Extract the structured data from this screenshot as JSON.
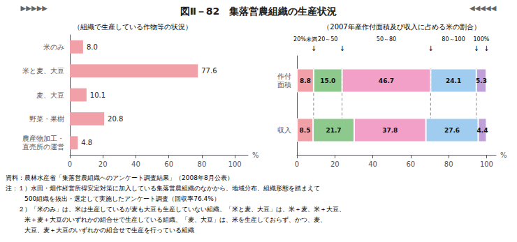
{
  "chart_data": [
    {
      "type": "bar",
      "orientation": "horizontal",
      "title": "図Ⅱ－82　集落営農組織の生産状況",
      "annotations": [
        "▶▶▶▶▶",
        "◀◀◀◀◀"
      ],
      "subtitle": "（組織で生産している作物等の状況）",
      "categories": [
        "米のみ",
        "米と麦、大豆",
        "麦、大豆",
        "野菜・果樹",
        "農産物加工・\n直売所の運営"
      ],
      "values": [
        8.0,
        77.6,
        10.1,
        20.8,
        4.8
      ],
      "value_labels": [
        "8.0",
        "77.6",
        "10.1",
        "20.8",
        "4.8"
      ],
      "color": "#f2a0a8",
      "xlim": [
        0,
        108
      ],
      "xticks": [
        0,
        20,
        40,
        60,
        80,
        100
      ],
      "xlabel": "%",
      "data_labels": true,
      "grid": false,
      "notes": [
        "資料：農林水産省「集落営農組織へのアンケート調査結果」（2008年8月公表）",
        "注：１）水田・畑作経営所得安定対策に加入している集落営農組織のなかから、地域分布、組織形態を踏まえて",
        "　　　500組織を抜出・選定して実施したアンケート調査（回収率76.4%）",
        "　　２）「米のみ」は、米は生産しているが麦も大豆も生産していない組織、「米と麦、大豆」は、米＋麦、米＋大豆、",
        "　　　米＋麦＋大豆のいずれかの組合せで生産している組織、「麦、大豆」は、米を生産しておらず、かつ、麦、",
        "　　　大豆、麦＋大豆のいずれかの組合せで生産を行っている組織"
      ]
    },
    {
      "type": "bar",
      "orientation": "horizontal",
      "stacked": true,
      "subtitle": "（2007年産作付面積及び収入に占める米の割合）",
      "categories": [
        "作付\n面積",
        "収入"
      ],
      "series": [
        {
          "name": "20%未満",
          "color": "#f2a0a8",
          "values": [
            8.8,
            8.5
          ]
        },
        {
          "name": "20～50",
          "color": "#8dc88d",
          "values": [
            15.0,
            21.7
          ],
          "value_labels": [
            "15.0",
            "21.7"
          ]
        },
        {
          "name": "50～80",
          "color": "#f2a0c8",
          "values": [
            46.7,
            37.8
          ]
        },
        {
          "name": "80～100",
          "color": "#a0ccf0",
          "values": [
            24.1,
            27.6
          ]
        },
        {
          "name": "100%",
          "color": "#c0a0d8",
          "values": [
            5.3,
            4.4
          ]
        }
      ],
      "xlim": [
        0,
        105
      ],
      "xticks": [
        0,
        20,
        40,
        60,
        80,
        100
      ],
      "xlabel": "%",
      "data_labels": true,
      "grid": false,
      "annotations": [
        "↓"
      ]
    }
  ]
}
